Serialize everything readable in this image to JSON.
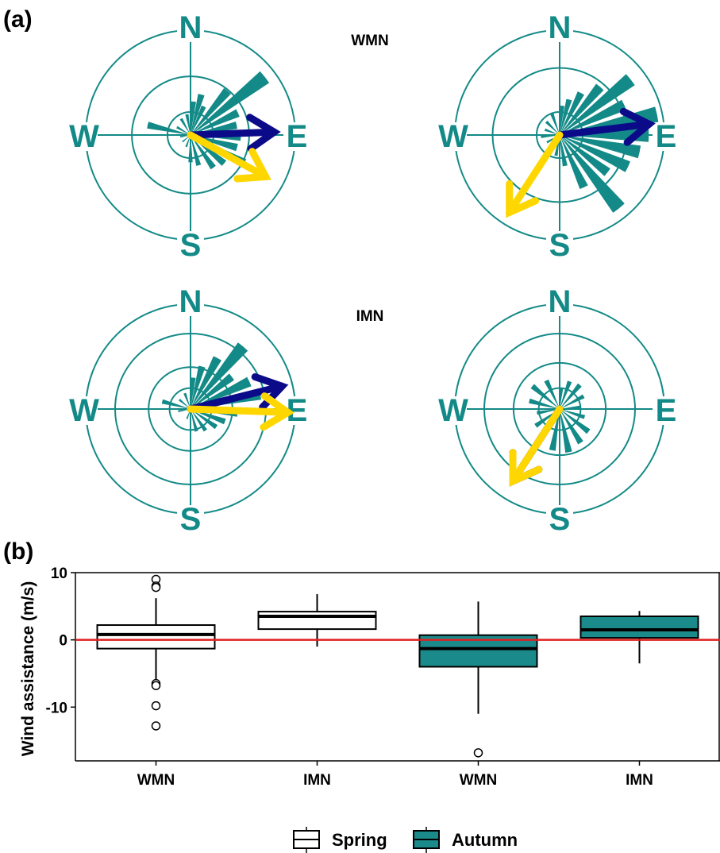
{
  "panel_a": {
    "label": "(a)",
    "row_titles": [
      "WMN",
      "IMN"
    ],
    "compass": {
      "n": "N",
      "e": "E",
      "s": "S",
      "w": "W"
    },
    "colors": {
      "ring": "#138a87",
      "petal": "#138a87",
      "arrow_spring": "#0b0b8a",
      "arrow_autumn": "#ffd700"
    }
  },
  "panel_b": {
    "label": "(b)"
  },
  "legend": {
    "items": [
      {
        "label": "Spring",
        "fill": "#ffffff"
      },
      {
        "label": "Autumn",
        "fill": "#1b8a8a"
      }
    ]
  },
  "chart_data": [
    {
      "type": "rose",
      "group": "WMN",
      "column": 1,
      "rings": [
        0.22,
        0.56,
        1.0
      ],
      "petals": [
        {
          "deg": 5,
          "r": 0.32
        },
        {
          "deg": 15,
          "r": 0.4
        },
        {
          "deg": 25,
          "r": 0.3
        },
        {
          "deg": 40,
          "r": 0.55
        },
        {
          "deg": 52,
          "r": 0.9
        },
        {
          "deg": 65,
          "r": 0.5
        },
        {
          "deg": 78,
          "r": 0.45
        },
        {
          "deg": 92,
          "r": 0.48
        },
        {
          "deg": 105,
          "r": 0.46
        },
        {
          "deg": 118,
          "r": 0.58
        },
        {
          "deg": 130,
          "r": 0.42
        },
        {
          "deg": 145,
          "r": 0.38
        },
        {
          "deg": 165,
          "r": 0.3
        },
        {
          "deg": 180,
          "r": 0.26
        },
        {
          "deg": 200,
          "r": 0.12
        },
        {
          "deg": 230,
          "r": 0.1
        },
        {
          "deg": 260,
          "r": 0.1
        },
        {
          "deg": 283,
          "r": 0.42
        },
        {
          "deg": 300,
          "r": 0.15
        },
        {
          "deg": 330,
          "r": 0.18
        },
        {
          "deg": 350,
          "r": 0.2
        }
      ],
      "arrows": [
        {
          "season": "Spring",
          "bearing_deg": 88,
          "length": 0.8
        },
        {
          "season": "Autumn",
          "bearing_deg": 119,
          "length": 0.82
        }
      ]
    },
    {
      "type": "rose",
      "group": "WMN",
      "column": 2,
      "rings": [
        0.22,
        0.64,
        1.0
      ],
      "petals": [
        {
          "deg": 5,
          "r": 0.28
        },
        {
          "deg": 15,
          "r": 0.35
        },
        {
          "deg": 27,
          "r": 0.45
        },
        {
          "deg": 40,
          "r": 0.6
        },
        {
          "deg": 52,
          "r": 0.86
        },
        {
          "deg": 65,
          "r": 0.68
        },
        {
          "deg": 78,
          "r": 0.95
        },
        {
          "deg": 90,
          "r": 0.85
        },
        {
          "deg": 102,
          "r": 0.78
        },
        {
          "deg": 115,
          "r": 0.72
        },
        {
          "deg": 128,
          "r": 0.58
        },
        {
          "deg": 141,
          "r": 0.9
        },
        {
          "deg": 155,
          "r": 0.55
        },
        {
          "deg": 170,
          "r": 0.3
        },
        {
          "deg": 190,
          "r": 0.2
        },
        {
          "deg": 215,
          "r": 0.15
        },
        {
          "deg": 240,
          "r": 0.14
        },
        {
          "deg": 265,
          "r": 0.18
        },
        {
          "deg": 290,
          "r": 0.15
        },
        {
          "deg": 315,
          "r": 0.18
        },
        {
          "deg": 340,
          "r": 0.22
        }
      ],
      "arrows": [
        {
          "season": "Spring",
          "bearing_deg": 83,
          "length": 0.86
        },
        {
          "season": "Autumn",
          "bearing_deg": 213,
          "length": 0.88
        }
      ]
    },
    {
      "type": "rose",
      "group": "IMN",
      "column": 1,
      "rings": [
        0.2,
        0.4,
        0.72,
        1.0
      ],
      "petals": [
        {
          "deg": 5,
          "r": 0.3
        },
        {
          "deg": 15,
          "r": 0.42
        },
        {
          "deg": 28,
          "r": 0.55
        },
        {
          "deg": 40,
          "r": 0.78
        },
        {
          "deg": 52,
          "r": 0.5
        },
        {
          "deg": 65,
          "r": 0.62
        },
        {
          "deg": 78,
          "r": 0.68
        },
        {
          "deg": 95,
          "r": 0.45
        },
        {
          "deg": 110,
          "r": 0.35
        },
        {
          "deg": 125,
          "r": 0.3
        },
        {
          "deg": 145,
          "r": 0.25
        },
        {
          "deg": 165,
          "r": 0.22
        },
        {
          "deg": 200,
          "r": 0.1
        },
        {
          "deg": 260,
          "r": 0.12
        },
        {
          "deg": 285,
          "r": 0.28
        },
        {
          "deg": 310,
          "r": 0.14
        },
        {
          "deg": 340,
          "r": 0.16
        }
      ],
      "arrows": [
        {
          "season": "Spring",
          "bearing_deg": 76,
          "length": 0.9
        },
        {
          "season": "Autumn",
          "bearing_deg": 92,
          "length": 0.93
        }
      ]
    },
    {
      "type": "rose",
      "group": "IMN",
      "column": 2,
      "rings": [
        0.2,
        0.44,
        0.72,
        1.0
      ],
      "petals": [
        {
          "deg": 5,
          "r": 0.2
        },
        {
          "deg": 20,
          "r": 0.28
        },
        {
          "deg": 40,
          "r": 0.3
        },
        {
          "deg": 62,
          "r": 0.26
        },
        {
          "deg": 85,
          "r": 0.2
        },
        {
          "deg": 108,
          "r": 0.25
        },
        {
          "deg": 128,
          "r": 0.35
        },
        {
          "deg": 148,
          "r": 0.38
        },
        {
          "deg": 168,
          "r": 0.42
        },
        {
          "deg": 190,
          "r": 0.4
        },
        {
          "deg": 212,
          "r": 0.35
        },
        {
          "deg": 235,
          "r": 0.28
        },
        {
          "deg": 260,
          "r": 0.22
        },
        {
          "deg": 285,
          "r": 0.3
        },
        {
          "deg": 310,
          "r": 0.34
        },
        {
          "deg": 335,
          "r": 0.3
        }
      ],
      "arrows": [
        {
          "season": "Spring",
          "bearing_deg": 213,
          "length": 0.82
        },
        {
          "season": "Autumn",
          "bearing_deg": 213,
          "length": 0.82
        }
      ]
    },
    {
      "type": "box",
      "categories": [
        "WMN",
        "IMN",
        "WMN",
        "IMN"
      ],
      "ylabel": "Wind assistance (m/s)",
      "ylim": [
        -18,
        10
      ],
      "yticks": [
        10,
        0,
        -10
      ],
      "reference_line": {
        "y": 0,
        "color": "#e02020"
      },
      "boxes": [
        {
          "season": "Spring",
          "min": -6.2,
          "q1": -1.3,
          "median": 0.8,
          "q3": 2.2,
          "max": 6.2,
          "outliers": [
            9.0,
            8.0,
            7.8,
            -6.5,
            -6.8,
            -9.8,
            -12.8
          ]
        },
        {
          "season": "Spring",
          "min": -1.0,
          "q1": 1.6,
          "median": 3.5,
          "q3": 4.2,
          "max": 6.8,
          "outliers": []
        },
        {
          "season": "Autumn",
          "min": -11.0,
          "q1": -4.0,
          "median": -1.3,
          "q3": 0.7,
          "max": 5.7,
          "outliers": [
            -16.8
          ]
        },
        {
          "season": "Autumn",
          "min": -3.5,
          "q1": 0.3,
          "median": 1.5,
          "q3": 3.5,
          "max": 4.3,
          "outliers": []
        }
      ]
    }
  ]
}
